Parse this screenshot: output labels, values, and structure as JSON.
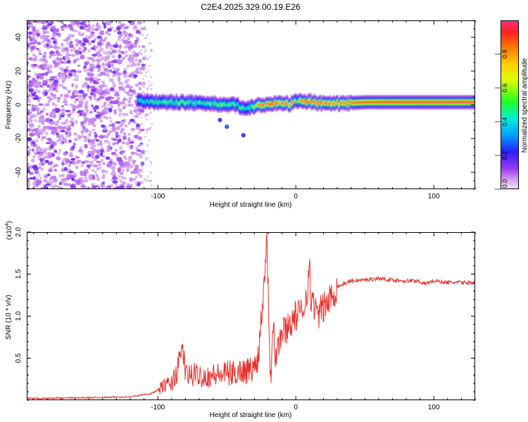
{
  "title": "C2E4.2025.329.00.19.E26",
  "chart_data": [
    {
      "type": "heatmap",
      "name": "spectrogram",
      "title": "C2E4.2025.329.00.19.E26",
      "xlabel": "Height of straight line (km)",
      "ylabel": "Frequency (Hz)",
      "xlim": [
        -195,
        130
      ],
      "ylim": [
        -50,
        50
      ],
      "x_ticks": [
        -100,
        0,
        100
      ],
      "x_tick_labels": [
        "-100",
        "0",
        "100"
      ],
      "y_ticks": [
        -40,
        -20,
        0,
        20,
        40
      ],
      "y_tick_labels": [
        "-40",
        "-20",
        "0",
        "20",
        "40"
      ],
      "colorbar": {
        "label": "Normalized spectral amplitude",
        "range": [
          0,
          1
        ],
        "ticks": [
          0.0,
          0.2,
          0.4,
          0.6,
          0.8
        ],
        "tick_labels": [
          "0.0",
          "0.2",
          "0.4",
          "0.6",
          "0.8"
        ]
      },
      "noise_region": {
        "x_range": [
          -195,
          -110
        ],
        "f_range": [
          -50,
          50
        ]
      },
      "signal_ridge": {
        "x": [
          -115,
          -100,
          -80,
          -60,
          -45,
          -35,
          -25,
          -15,
          -5,
          0,
          5,
          15,
          25,
          50,
          80,
          130
        ],
        "f": [
          2.5,
          1.5,
          1.5,
          0.5,
          0.0,
          -2.0,
          0.0,
          1.0,
          0.5,
          2.0,
          2.5,
          1.0,
          0.5,
          1.5,
          1.5,
          1.5
        ],
        "amplitude": [
          0.45,
          0.55,
          0.55,
          0.55,
          0.55,
          0.5,
          0.9,
          0.95,
          0.9,
          0.55,
          0.9,
          0.9,
          0.85,
          0.95,
          0.98,
          1.0
        ]
      },
      "isolated_blobs": [
        {
          "x": -50,
          "f": -13,
          "amplitude": 0.25
        },
        {
          "x": -55,
          "f": -9,
          "amplitude": 0.2
        },
        {
          "x": -38,
          "f": -18,
          "amplitude": 0.2
        }
      ]
    },
    {
      "type": "line",
      "name": "snr",
      "xlabel": "Height of straight line (km)",
      "ylabel": "SNR (10 * v/v)",
      "y_exponent_label": "(x10",
      "y_exponent_value": "4",
      "xlim": [
        -195,
        130
      ],
      "ylim": [
        0,
        2.0
      ],
      "x_ticks": [
        -100,
        0,
        100
      ],
      "x_tick_labels": [
        "-100",
        "0",
        "100"
      ],
      "y_ticks": [
        0.5,
        1.0,
        1.5,
        2.0
      ],
      "y_tick_labels": [
        "0.5",
        "1.0",
        "1.5",
        "2.0"
      ],
      "color": "#e8302c",
      "series": [
        {
          "name": "SNR",
          "x": [
            -195,
            -150,
            -120,
            -105,
            -100,
            -95,
            -90,
            -85,
            -82,
            -80,
            -75,
            -70,
            -65,
            -60,
            -55,
            -50,
            -45,
            -40,
            -35,
            -30,
            -27,
            -25,
            -23,
            -21,
            -20,
            -19,
            -18,
            -17,
            -16,
            -15,
            -12,
            -10,
            -5,
            0,
            5,
            8,
            10,
            11,
            12,
            15,
            20,
            25,
            30,
            40,
            50,
            60,
            70,
            80,
            90,
            92,
            100,
            110,
            120,
            130
          ],
          "y": [
            0.02,
            0.03,
            0.04,
            0.08,
            0.12,
            0.18,
            0.2,
            0.4,
            0.65,
            0.3,
            0.3,
            0.3,
            0.28,
            0.3,
            0.3,
            0.32,
            0.32,
            0.35,
            0.35,
            0.38,
            0.55,
            1.0,
            1.4,
            2.0,
            1.3,
            0.6,
            0.25,
            0.9,
            1.0,
            0.5,
            0.7,
            0.8,
            0.9,
            1.0,
            1.05,
            1.3,
            1.55,
            1.1,
            1.25,
            1.0,
            1.1,
            1.2,
            1.35,
            1.42,
            1.43,
            1.45,
            1.43,
            1.42,
            1.42,
            1.38,
            1.42,
            1.4,
            1.4,
            1.4
          ]
        }
      ]
    }
  ]
}
